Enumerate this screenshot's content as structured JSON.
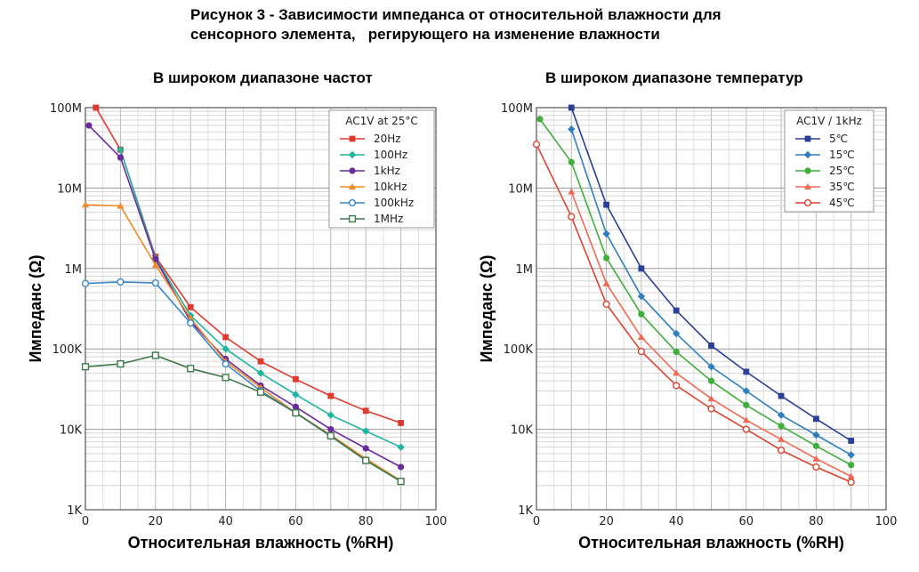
{
  "figure_title": {
    "line1": "Рисунок 3 - Зависимости импеданса от относительной влажности для",
    "line2": "сенсорного элемента,   регирующего на изменение влажности"
  },
  "chart_data": [
    {
      "type": "line",
      "title": "В широком диапазоне частот",
      "xlabel": "Относительная влажность (%RH)",
      "ylabel": "Импеданс (Ω)",
      "xlim": [
        0,
        100
      ],
      "ylim": [
        1000,
        100000000
      ],
      "yscale": "log",
      "grid": true,
      "x_ticks": [
        "0",
        "20",
        "40",
        "60",
        "80",
        "100"
      ],
      "y_ticks": [
        "1K",
        "10K",
        "100K",
        "1M",
        "10M",
        "100M"
      ],
      "legend_title": "AC1V at 25°C",
      "legend_position": "top-right",
      "series": [
        {
          "name": "20Hz",
          "color": "#e03a2f",
          "marker": "square-filled",
          "points": [
            [
              3,
              100000000
            ],
            [
              10,
              30000000
            ],
            [
              20,
              1400000
            ],
            [
              30,
              330000
            ],
            [
              40,
              140000
            ],
            [
              50,
              70000
            ],
            [
              60,
              42000
            ],
            [
              70,
              26000
            ],
            [
              80,
              17000
            ],
            [
              90,
              12000
            ]
          ]
        },
        {
          "name": "100Hz",
          "color": "#1fb5a0",
          "marker": "diamond-filled",
          "points": [
            [
              10,
              30000000
            ],
            [
              20,
              1350000
            ],
            [
              30,
              260000
            ],
            [
              40,
              100000
            ],
            [
              50,
              50000
            ],
            [
              60,
              27000
            ],
            [
              70,
              15000
            ],
            [
              80,
              9500
            ],
            [
              90,
              6000
            ]
          ]
        },
        {
          "name": "1kHz",
          "color": "#6a2a9c",
          "marker": "circle-filled",
          "points": [
            [
              1,
              60000000
            ],
            [
              10,
              24000000
            ],
            [
              20,
              1300000
            ],
            [
              30,
              220000
            ],
            [
              40,
              75000
            ],
            [
              50,
              35000
            ],
            [
              60,
              19000
            ],
            [
              70,
              10000
            ],
            [
              80,
              5800
            ],
            [
              90,
              3400
            ]
          ]
        },
        {
          "name": "10kHz",
          "color": "#f28a24",
          "marker": "triangle-filled",
          "points": [
            [
              0,
              6200000
            ],
            [
              10,
              6000000
            ],
            [
              20,
              1100000
            ],
            [
              30,
              240000
            ],
            [
              40,
              70000
            ],
            [
              50,
              33000
            ],
            [
              60,
              16000
            ],
            [
              70,
              8500
            ],
            [
              80,
              4300
            ],
            [
              90,
              2300
            ]
          ]
        },
        {
          "name": "100kHz",
          "color": "#3a86c8",
          "marker": "circle-open",
          "points": [
            [
              0,
              650000
            ],
            [
              10,
              680000
            ],
            [
              20,
              660000
            ],
            [
              30,
              210000
            ],
            [
              40,
              65000
            ],
            [
              50,
              30000
            ],
            [
              60,
              16000
            ],
            [
              70,
              8200
            ],
            [
              80,
              4100
            ],
            [
              90,
              2250
            ]
          ]
        },
        {
          "name": "1MHz",
          "color": "#3f7a4a",
          "marker": "square-open",
          "points": [
            [
              0,
              60000
            ],
            [
              10,
              65000
            ],
            [
              20,
              83000
            ],
            [
              30,
              57000
            ],
            [
              40,
              44000
            ],
            [
              50,
              29000
            ],
            [
              60,
              16000
            ],
            [
              70,
              8300
            ],
            [
              80,
              4100
            ],
            [
              90,
              2250
            ]
          ]
        }
      ]
    },
    {
      "type": "line",
      "title": "В широком диапазоне температур",
      "xlabel": "Относительная влажность (%RH)",
      "ylabel": "Импеданс (Ω)",
      "xlim": [
        0,
        100
      ],
      "ylim": [
        1000,
        100000000
      ],
      "yscale": "log",
      "grid": true,
      "x_ticks": [
        "0",
        "20",
        "40",
        "60",
        "80",
        "100"
      ],
      "y_ticks": [
        "1K",
        "10K",
        "100K",
        "1M",
        "10M",
        "100M"
      ],
      "legend_title": "AC1V / 1kHz",
      "legend_position": "top-right",
      "series": [
        {
          "name": "5℃",
          "color": "#2a3f96",
          "marker": "square-filled",
          "points": [
            [
              10,
              100000000
            ],
            [
              20,
              6200000
            ],
            [
              30,
              1000000
            ],
            [
              40,
              300000
            ],
            [
              50,
              110000
            ],
            [
              60,
              52000
            ],
            [
              70,
              26000
            ],
            [
              80,
              13500
            ],
            [
              90,
              7200
            ]
          ]
        },
        {
          "name": "15℃",
          "color": "#2e7fc0",
          "marker": "diamond-filled",
          "points": [
            [
              10,
              54000000
            ],
            [
              20,
              2700000
            ],
            [
              30,
              450000
            ],
            [
              40,
              155000
            ],
            [
              50,
              60000
            ],
            [
              60,
              30000
            ],
            [
              70,
              15000
            ],
            [
              80,
              8500
            ],
            [
              90,
              4800
            ]
          ]
        },
        {
          "name": "25℃",
          "color": "#3fae3a",
          "marker": "circle-filled",
          "points": [
            [
              1,
              72000000
            ],
            [
              10,
              21000000
            ],
            [
              20,
              1350000
            ],
            [
              30,
              270000
            ],
            [
              40,
              92000
            ],
            [
              50,
              40000
            ],
            [
              60,
              20000
            ],
            [
              70,
              11000
            ],
            [
              80,
              6200
            ],
            [
              90,
              3600
            ]
          ]
        },
        {
          "name": "35℃",
          "color": "#f06a52",
          "marker": "triangle-filled",
          "points": [
            [
              10,
              9000000
            ],
            [
              20,
              650000
            ],
            [
              30,
              140000
            ],
            [
              40,
              50000
            ],
            [
              50,
              24000
            ],
            [
              60,
              13000
            ],
            [
              70,
              7500
            ],
            [
              80,
              4300
            ],
            [
              90,
              2600
            ]
          ]
        },
        {
          "name": "45℃",
          "color": "#d9452f",
          "marker": "circle-open",
          "points": [
            [
              0,
              35000000
            ],
            [
              10,
              4400000
            ],
            [
              20,
              360000
            ],
            [
              30,
              93000
            ],
            [
              40,
              35000
            ],
            [
              50,
              18000
            ],
            [
              60,
              10000
            ],
            [
              70,
              5500
            ],
            [
              80,
              3400
            ],
            [
              90,
              2200
            ]
          ]
        }
      ]
    }
  ]
}
